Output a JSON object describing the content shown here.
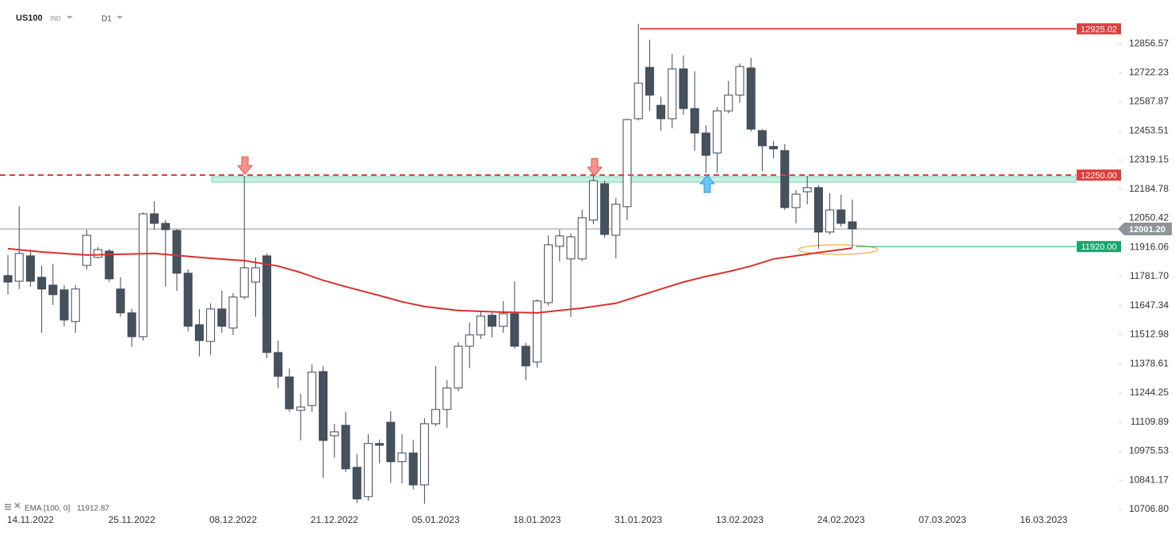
{
  "header": {
    "symbol": "US100",
    "type": "IND",
    "timeframe": "D1"
  },
  "chart_data": {
    "type": "candlestick",
    "categories": [
      null,
      null,
      "14.11.2022",
      null,
      null,
      null,
      null,
      null,
      null,
      null,
      null,
      "25.11.2022",
      null,
      null,
      null,
      null,
      null,
      null,
      null,
      null,
      "08.12.2022",
      null,
      null,
      null,
      null,
      null,
      null,
      null,
      null,
      "21.12.2022",
      null,
      null,
      null,
      null,
      null,
      null,
      null,
      null,
      "05.01.2023",
      null,
      null,
      null,
      null,
      null,
      null,
      null,
      null,
      "18.01.2023",
      null,
      null,
      null,
      null,
      null,
      null,
      null,
      null,
      "31.01.2023",
      null,
      null,
      null,
      null,
      null,
      null,
      null,
      null,
      "13.02.2023",
      null,
      null,
      null,
      null,
      null,
      null,
      null,
      null,
      "24.02.2023",
      null,
      null,
      null,
      null,
      null,
      null,
      null,
      null,
      "07.03.2023",
      null,
      null,
      null,
      null,
      null,
      null,
      null,
      null,
      "16.03.2023"
    ],
    "open": [
      11786,
      11760,
      11877,
      11778,
      11742,
      11720,
      11574,
      11833,
      11870,
      11899,
      11724,
      11614,
      11504,
      12071,
      12027,
      11994,
      11797,
      11559,
      11482,
      11632,
      11544,
      11687,
      11756,
      11877,
      11431,
      11318,
      11164,
      11186,
      11343,
      11047,
      11095,
      10901,
      10766,
      11011,
      11109,
      10927,
      10967,
      10820,
      11102,
      11168,
      11267,
      11460,
      11512,
      11603,
      11552,
      11610,
      11460,
      11387,
      11661,
      11921,
      11863,
      11863,
      12042,
      12210,
      11972,
      12104,
      12510,
      12747,
      12572,
      12510,
      12740,
      12557,
      12444,
      12352,
      12546,
      12619,
      12744,
      12455,
      12382,
      12363,
      12100,
      12173,
      12192,
      11987,
      12089,
      12034,
      null,
      null,
      null,
      null,
      null,
      null,
      null,
      null,
      null,
      null,
      null,
      null,
      null,
      null,
      null,
      null,
      null
    ],
    "high": [
      11881,
      12107,
      11906,
      11833,
      11841,
      11742,
      11742,
      11998,
      11917,
      11910,
      11778,
      11632,
      12078,
      12129,
      12042,
      12001,
      11815,
      11632,
      11658,
      11716,
      11705,
      12246,
      11870,
      11888,
      11486,
      11358,
      11241,
      11376,
      11369,
      11102,
      11157,
      10963,
      11054,
      11029,
      11160,
      11054,
      11029,
      11128,
      11369,
      11303,
      11479,
      11570,
      11621,
      11621,
      11669,
      11760,
      11475,
      11676,
      11972,
      11998,
      11980,
      12089,
      12246,
      12224,
      12144,
      12510,
      12948,
      12875,
      12612,
      12809,
      12802,
      12729,
      12480,
      12564,
      12685,
      12766,
      12791,
      12462,
      12407,
      12393,
      12181,
      12246,
      12203,
      12166,
      12159,
      12137,
      null,
      null,
      null,
      null,
      null,
      null,
      null,
      null,
      null,
      null,
      null,
      null,
      null,
      null,
      null,
      null,
      null
    ],
    "low": [
      11698,
      11724,
      11735,
      11522,
      11650,
      11552,
      11522,
      11815,
      11866,
      11756,
      11596,
      11457,
      11486,
      11998,
      11735,
      11716,
      11530,
      11413,
      11420,
      11522,
      11512,
      11676,
      11596,
      11405,
      11267,
      11157,
      11025,
      11157,
      10853,
      10945,
      10879,
      10736,
      10747,
      10919,
      10828,
      10828,
      10799,
      10733,
      11091,
      11084,
      11252,
      11358,
      11493,
      11501,
      11522,
      11449,
      11303,
      11362,
      11647,
      11852,
      11596,
      11852,
      12023,
      11961,
      11866,
      12042,
      12502,
      12546,
      12455,
      12466,
      12528,
      12363,
      12261,
      12261,
      12535,
      12583,
      12451,
      12268,
      12327,
      12089,
      12027,
      12115,
      11910,
      11976,
      12012,
      11914,
      null,
      null,
      null,
      null,
      null,
      null,
      null,
      null,
      null,
      null,
      null,
      null,
      null,
      null,
      null,
      null,
      null
    ],
    "close": [
      11756,
      11888,
      11760,
      11724,
      11698,
      11581,
      11724,
      11972,
      11906,
      11771,
      11614,
      11504,
      12071,
      12027,
      11998,
      11797,
      11552,
      11486,
      11632,
      11552,
      11687,
      11822,
      11822,
      11431,
      11321,
      11171,
      11179,
      11340,
      11025,
      11065,
      10894,
      10755,
      11011,
      11003,
      10927,
      10967,
      10820,
      11102,
      11168,
      11267,
      11460,
      11512,
      11599,
      11552,
      11610,
      11460,
      11369,
      11669,
      11928,
      11969,
      11965,
      12053,
      12224,
      11976,
      12115,
      12506,
      12674,
      12619,
      12510,
      12740,
      12557,
      12444,
      12341,
      12546,
      12619,
      12751,
      12462,
      12385,
      12371,
      12100,
      12162,
      12192,
      11987,
      12089,
      12027,
      12001,
      null,
      null,
      null,
      null,
      null,
      null,
      null,
      null,
      null,
      null,
      null,
      null,
      null,
      null,
      null,
      null,
      null
    ],
    "up_color": "#ffffff",
    "down_color": "#45525e",
    "ylim": [
      10681,
      13058
    ],
    "yticks": [
      12856.57,
      12722.23,
      12587.87,
      12453.51,
      12319.15,
      12184.78,
      12050.42,
      11916.06,
      {
        "value": 11781.7,
        "label": "11781.70"
      },
      11647.34,
      11512.98,
      11378.61,
      11244.25,
      11109.89,
      10975.53,
      10841.17,
      {
        "value": 10706.8,
        "label": "10706.80"
      }
    ],
    "ema": {
      "name": "EMA [100, 0]",
      "last_value": 11912.87,
      "color": "#d9302c",
      "x": [
        0,
        3,
        7,
        13,
        18,
        21,
        24,
        26,
        28,
        30,
        33,
        35,
        37,
        40,
        44,
        47,
        49,
        51,
        54,
        56,
        58,
        60,
        62,
        64,
        66,
        68,
        70,
        72,
        75
      ],
      "values": [
        11910,
        11895,
        11881,
        11888,
        11866,
        11855,
        11830,
        11800,
        11764,
        11735,
        11694,
        11665,
        11643,
        11625,
        11617,
        11614,
        11625,
        11636,
        11658,
        11691,
        11724,
        11756,
        11782,
        11804,
        11830,
        11863,
        11877,
        11892,
        11913
      ]
    },
    "levels": [
      {
        "value": 12925.02,
        "color": "#e03e3e",
        "dashed": false
      },
      {
        "value": 12250,
        "label": "12250.00",
        "color": "#e03e3e",
        "dashed": true
      },
      {
        "value": 11920,
        "label": "11920.00",
        "color": "#16a86f",
        "dashed": false
      }
    ],
    "current_price": {
      "value": 12001.2,
      "label": "12001.20",
      "color": "#8e9499"
    }
  }
}
